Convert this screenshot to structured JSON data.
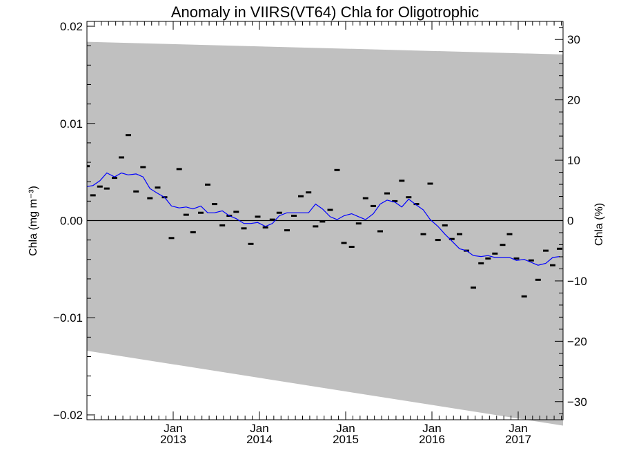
{
  "chart_data": {
    "type": "scatter",
    "title": "Anomaly in VIIRS(VT64) Chla for Oligotrophic",
    "ylabel_left": "Chla (mg m⁻³)",
    "ylabel_right": "Chla (%)",
    "xlim": [
      2012.0,
      2017.52
    ],
    "ylim_left": [
      -0.0205,
      0.0205
    ],
    "ylim_right": [
      -33.0,
      33.0
    ],
    "x_ticks": [
      {
        "x": 2013.0,
        "month": "Jan",
        "year": "2013"
      },
      {
        "x": 2014.0,
        "month": "Jan",
        "year": "2014"
      },
      {
        "x": 2015.0,
        "month": "Jan",
        "year": "2015"
      },
      {
        "x": 2016.0,
        "month": "Jan",
        "year": "2016"
      },
      {
        "x": 2017.0,
        "month": "Jan",
        "year": "2017"
      }
    ],
    "y_ticks_left": [
      {
        "value": 0.02,
        "label": "0.02"
      },
      {
        "value": 0.01,
        "label": "0.01"
      },
      {
        "value": 0.0,
        "label": "0.00"
      },
      {
        "value": -0.01,
        "label": "−0.01"
      },
      {
        "value": -0.02,
        "label": "−0.02"
      }
    ],
    "y_ticks_right": [
      {
        "value": 30,
        "label": "30"
      },
      {
        "value": 20,
        "label": "20"
      },
      {
        "value": 10,
        "label": "10"
      },
      {
        "value": 0,
        "label": "0"
      },
      {
        "value": -10,
        "label": "−10"
      },
      {
        "value": -20,
        "label": "−20"
      },
      {
        "value": -30,
        "label": "−30"
      }
    ],
    "uncertainty_band": {
      "color": "#c0c0c0",
      "upper": [
        [
          2012.0,
          0.0184
        ],
        [
          2017.52,
          0.0171
        ]
      ],
      "lower": [
        [
          2012.0,
          -0.0134
        ],
        [
          2017.52,
          -0.0211
        ]
      ]
    },
    "series": [
      {
        "type": "marker",
        "color": "#000000",
        "points": [
          [
            2012.0,
            0.0056
          ],
          [
            2012.07,
            0.0026
          ],
          [
            2012.15,
            0.0035
          ],
          [
            2012.23,
            0.0033
          ],
          [
            2012.32,
            0.0044
          ],
          [
            2012.4,
            0.0065
          ],
          [
            2012.48,
            0.0088
          ],
          [
            2012.57,
            0.003
          ],
          [
            2012.65,
            0.0055
          ],
          [
            2012.73,
            0.0023
          ],
          [
            2012.82,
            0.0034
          ],
          [
            2012.9,
            0.0024
          ],
          [
            2012.98,
            -0.0018
          ],
          [
            2013.07,
            0.0053
          ],
          [
            2013.15,
            0.0006
          ],
          [
            2013.23,
            -0.0012
          ],
          [
            2013.32,
            0.0008
          ],
          [
            2013.4,
            0.0037
          ],
          [
            2013.48,
            0.0017
          ],
          [
            2013.57,
            -0.0005
          ],
          [
            2013.65,
            0.0005
          ],
          [
            2013.73,
            0.0009
          ],
          [
            2013.82,
            -0.0008
          ],
          [
            2013.9,
            -0.0024
          ],
          [
            2013.98,
            0.0004
          ],
          [
            2014.07,
            -0.0007
          ],
          [
            2014.15,
            0.0001
          ],
          [
            2014.23,
            0.0008
          ],
          [
            2014.32,
            -0.001
          ],
          [
            2014.4,
            0.0005
          ],
          [
            2014.48,
            0.0025
          ],
          [
            2014.57,
            0.0029
          ],
          [
            2014.65,
            -0.0006
          ],
          [
            2014.73,
            -0.0001
          ],
          [
            2014.82,
            0.0011
          ],
          [
            2014.9,
            0.0052
          ],
          [
            2014.98,
            -0.0023
          ],
          [
            2015.07,
            -0.0027
          ],
          [
            2015.15,
            -0.0003
          ],
          [
            2015.23,
            0.0023
          ],
          [
            2015.32,
            0.0015
          ],
          [
            2015.4,
            -0.0011
          ],
          [
            2015.48,
            0.0028
          ],
          [
            2015.57,
            0.002
          ],
          [
            2015.65,
            0.0041
          ],
          [
            2015.73,
            0.0024
          ],
          [
            2015.82,
            0.0017
          ],
          [
            2015.9,
            -0.0014
          ],
          [
            2015.98,
            0.0038
          ],
          [
            2016.07,
            -0.002
          ],
          [
            2016.15,
            -0.0005
          ],
          [
            2016.23,
            -0.0019
          ],
          [
            2016.32,
            -0.0014
          ],
          [
            2016.4,
            -0.0031
          ],
          [
            2016.48,
            -0.0069
          ],
          [
            2016.57,
            -0.0044
          ],
          [
            2016.65,
            -0.0039
          ],
          [
            2016.73,
            -0.0034
          ],
          [
            2016.82,
            -0.0025
          ],
          [
            2016.9,
            -0.0014
          ],
          [
            2016.98,
            -0.0039
          ],
          [
            2017.07,
            -0.0078
          ],
          [
            2017.15,
            -0.0041
          ],
          [
            2017.23,
            -0.0061
          ],
          [
            2017.32,
            -0.0031
          ],
          [
            2017.4,
            -0.0046
          ],
          [
            2017.48,
            -0.0029
          ]
        ]
      },
      {
        "type": "line",
        "color": "#0000ff",
        "points": [
          [
            2012.0,
            0.0035
          ],
          [
            2012.07,
            0.0036
          ],
          [
            2012.15,
            0.0041
          ],
          [
            2012.23,
            0.0049
          ],
          [
            2012.32,
            0.0045
          ],
          [
            2012.4,
            0.0049
          ],
          [
            2012.48,
            0.0047
          ],
          [
            2012.57,
            0.0048
          ],
          [
            2012.65,
            0.0045
          ],
          [
            2012.73,
            0.0033
          ],
          [
            2012.82,
            0.0028
          ],
          [
            2012.9,
            0.0024
          ],
          [
            2012.98,
            0.0015
          ],
          [
            2013.07,
            0.0013
          ],
          [
            2013.15,
            0.0014
          ],
          [
            2013.23,
            0.0012
          ],
          [
            2013.32,
            0.0015
          ],
          [
            2013.4,
            0.0008
          ],
          [
            2013.48,
            0.0008
          ],
          [
            2013.57,
            0.001
          ],
          [
            2013.65,
            0.0005
          ],
          [
            2013.73,
            0.0002
          ],
          [
            2013.82,
            -0.0003
          ],
          [
            2013.9,
            -0.0003
          ],
          [
            2013.98,
            -0.0002
          ],
          [
            2014.07,
            -0.0006
          ],
          [
            2014.15,
            -0.0003
          ],
          [
            2014.23,
            0.0005
          ],
          [
            2014.32,
            0.0008
          ],
          [
            2014.4,
            0.0008
          ],
          [
            2014.48,
            0.0008
          ],
          [
            2014.57,
            0.0008
          ],
          [
            2014.65,
            0.0017
          ],
          [
            2014.73,
            0.0012
          ],
          [
            2014.82,
            0.0004
          ],
          [
            2014.9,
            0.0001
          ],
          [
            2014.98,
            0.0005
          ],
          [
            2015.07,
            0.0007
          ],
          [
            2015.15,
            0.0004
          ],
          [
            2015.23,
            0.0001
          ],
          [
            2015.32,
            0.0007
          ],
          [
            2015.4,
            0.0017
          ],
          [
            2015.48,
            0.0021
          ],
          [
            2015.57,
            0.0019
          ],
          [
            2015.65,
            0.0014
          ],
          [
            2015.73,
            0.0022
          ],
          [
            2015.82,
            0.0016
          ],
          [
            2015.9,
            0.0011
          ],
          [
            2015.98,
            0.0001
          ],
          [
            2016.07,
            -0.0006
          ],
          [
            2016.15,
            -0.0014
          ],
          [
            2016.23,
            -0.0021
          ],
          [
            2016.32,
            -0.0029
          ],
          [
            2016.4,
            -0.0031
          ],
          [
            2016.48,
            -0.0036
          ],
          [
            2016.57,
            -0.0037
          ],
          [
            2016.65,
            -0.0036
          ],
          [
            2016.73,
            -0.0038
          ],
          [
            2016.82,
            -0.0038
          ],
          [
            2016.9,
            -0.0038
          ],
          [
            2016.98,
            -0.0041
          ],
          [
            2017.07,
            -0.004
          ],
          [
            2017.15,
            -0.0043
          ],
          [
            2017.23,
            -0.0046
          ],
          [
            2017.32,
            -0.0044
          ],
          [
            2017.4,
            -0.0038
          ],
          [
            2017.48,
            -0.0037
          ]
        ]
      }
    ]
  }
}
